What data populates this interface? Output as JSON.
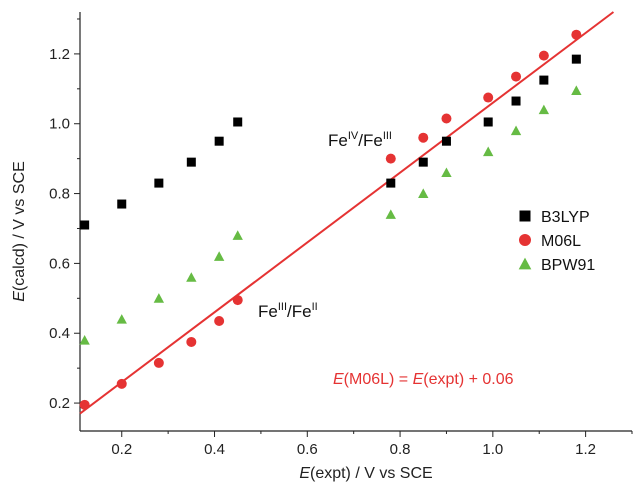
{
  "chart_data": {
    "type": "scatter",
    "xlabel": {
      "italic": "E",
      "rest": "(expt) / V vs SCE"
    },
    "ylabel": {
      "italic": "E",
      "rest": "(calcd) / V vs SCE"
    },
    "xlim": [
      0.11,
      1.3
    ],
    "ylim": [
      0.12,
      1.32
    ],
    "x_ticks": [
      0.2,
      0.4,
      0.6,
      0.8,
      1.0,
      1.2
    ],
    "x_tick_labels": [
      "0.2",
      "0.4",
      "0.6",
      "0.8",
      "1.0",
      "1.2"
    ],
    "y_ticks": [
      0.2,
      0.4,
      0.6,
      0.8,
      1.0,
      1.2
    ],
    "y_tick_labels": [
      "0.2",
      "0.4",
      "0.6",
      "0.8",
      "1.0",
      "1.2"
    ],
    "grid": false,
    "legend_position": "right",
    "series": [
      {
        "name": "B3LYP",
        "marker": "square",
        "color": "#000000",
        "x": [
          0.12,
          0.2,
          0.28,
          0.35,
          0.41,
          0.45,
          0.78,
          0.85,
          0.9,
          0.99,
          1.05,
          1.11,
          1.18
        ],
        "y": [
          0.71,
          0.77,
          0.83,
          0.89,
          0.95,
          1.005,
          0.83,
          0.89,
          0.95,
          1.005,
          1.065,
          1.125,
          1.185
        ]
      },
      {
        "name": "M06L",
        "marker": "circle",
        "color": "#e53333",
        "x": [
          0.12,
          0.2,
          0.28,
          0.35,
          0.41,
          0.45,
          0.78,
          0.85,
          0.9,
          0.99,
          1.05,
          1.11,
          1.18
        ],
        "y": [
          0.195,
          0.255,
          0.315,
          0.375,
          0.435,
          0.495,
          0.9,
          0.96,
          1.015,
          1.075,
          1.135,
          1.195,
          1.255
        ]
      },
      {
        "name": "BPW91",
        "marker": "triangle",
        "color": "#66bb44",
        "x": [
          0.12,
          0.2,
          0.28,
          0.35,
          0.41,
          0.45,
          0.78,
          0.85,
          0.9,
          0.99,
          1.05,
          1.11,
          1.18
        ],
        "y": [
          0.38,
          0.44,
          0.5,
          0.56,
          0.62,
          0.68,
          0.74,
          0.8,
          0.86,
          0.92,
          0.98,
          1.04,
          1.095
        ]
      }
    ],
    "fit_line": {
      "color": "#e53333",
      "slope": 1.0,
      "intercept": 0.06,
      "label_parts": [
        {
          "text": "E",
          "italic": true
        },
        {
          "text": "(M06L) = ",
          "italic": false
        },
        {
          "text": "E",
          "italic": true
        },
        {
          "text": "(expt) + 0.06",
          "italic": false
        }
      ]
    },
    "annotations": [
      {
        "base1": "Fe",
        "sup1": "IV",
        "mid": "/Fe",
        "sup2": "III",
        "x": 0.77,
        "y": 1.01
      },
      {
        "base1": "Fe",
        "sup1": "III",
        "mid": "/Fe",
        "sup2": "II",
        "x": 0.47,
        "y": 0.41
      }
    ]
  }
}
